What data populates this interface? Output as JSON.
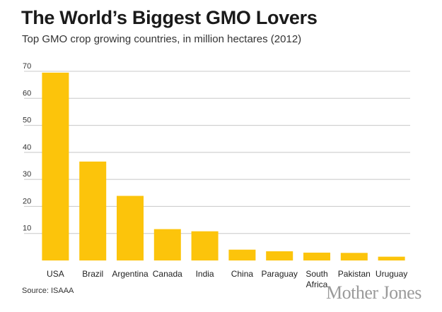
{
  "chart_data": {
    "type": "bar",
    "title": "The World’s Biggest GMO Lovers",
    "subtitle": "Top GMO crop growing countries, in million hectares (2012)",
    "categories": [
      "USA",
      "Brazil",
      "Argentina",
      "Canada",
      "India",
      "China",
      "Paraguay",
      "South Africa",
      "Pakistan",
      "Uruguay"
    ],
    "category_lines": [
      [
        "USA"
      ],
      [
        "Brazil"
      ],
      [
        "Argentina"
      ],
      [
        "Canada"
      ],
      [
        "India"
      ],
      [
        "China"
      ],
      [
        "Paraguay"
      ],
      [
        "South",
        "Africa"
      ],
      [
        "Pakistan"
      ],
      [
        "Uruguay"
      ]
    ],
    "values": [
      69.5,
      36.6,
      23.9,
      11.6,
      10.8,
      4.0,
      3.4,
      2.9,
      2.8,
      1.4
    ],
    "yticks": [
      10,
      20,
      30,
      40,
      50,
      60,
      70
    ],
    "ylim": [
      0,
      70
    ],
    "grid": true,
    "bar_color": "#fcc40b",
    "grid_color": "#c8c8c8",
    "xlabel": "",
    "ylabel": ""
  },
  "footer": {
    "source": "Source: ISAAA",
    "brand": "Mother Jones"
  }
}
